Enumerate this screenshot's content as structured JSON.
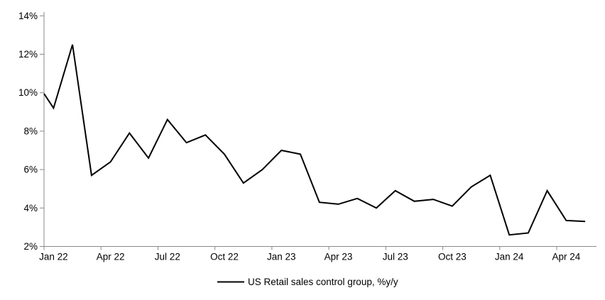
{
  "chart_data": {
    "type": "line",
    "title": "",
    "categories": [
      "Jan 22",
      "Feb 22",
      "Mar 22",
      "Apr 22",
      "May 22",
      "Jun 22",
      "Jul 22",
      "Aug 22",
      "Sep 22",
      "Oct 22",
      "Nov 22",
      "Dec 22",
      "Jan 23",
      "Feb 23",
      "Mar 23",
      "Apr 23",
      "May 23",
      "Jun 23",
      "Jul 23",
      "Aug 23",
      "Sep 23",
      "Oct 23",
      "Nov 23",
      "Dec 23",
      "Jan 24",
      "Feb 24",
      "Mar 24",
      "Apr 24",
      "May 24"
    ],
    "series": [
      {
        "name": "US Retail sales control group, %y/y",
        "values": [
          9.2,
          12.5,
          5.7,
          6.4,
          7.9,
          6.6,
          8.6,
          7.4,
          7.8,
          6.8,
          5.3,
          6.0,
          7.0,
          6.8,
          4.3,
          4.2,
          4.5,
          4.0,
          4.9,
          4.35,
          4.45,
          4.1,
          5.1,
          5.7,
          2.6,
          2.7,
          4.9,
          3.35,
          3.3
        ],
        "color": "#000000",
        "line_width": 2
      }
    ],
    "lead_in_value_at_axis": 9.95,
    "ylim": [
      2,
      14
    ],
    "y_tick_step": 2,
    "y_tick_labels": [
      "2%",
      "4%",
      "6%",
      "8%",
      "10%",
      "12%",
      "14%"
    ],
    "x_tick_labels": [
      "Jan 22",
      "Apr 22",
      "Jul 22",
      "Oct 22",
      "Jan 23",
      "Apr 23",
      "Jul 23",
      "Oct 23",
      "Jan 24",
      "Apr 24"
    ],
    "x_tick_every": 3,
    "grid": false,
    "legend": {
      "position": "bottom",
      "label": "US Retail sales control group, %y/y"
    },
    "axis_color": "#888888",
    "text_color": "#000000"
  }
}
